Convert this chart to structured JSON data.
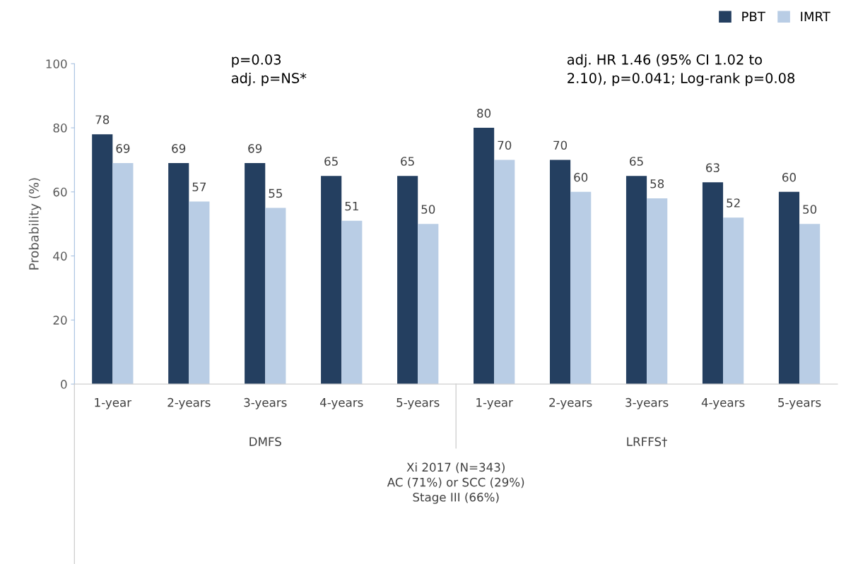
{
  "chart_data": {
    "type": "bar",
    "categories": [
      "1-year",
      "2-years",
      "3-years",
      "4-years",
      "5-years",
      "1-year",
      "2-years",
      "3-years",
      "4-years",
      "5-years"
    ],
    "series": [
      {
        "name": "PBT",
        "color": "#243f60",
        "values": [
          78,
          69,
          69,
          65,
          65,
          80,
          70,
          65,
          63,
          60
        ]
      },
      {
        "name": "IMRT",
        "color": "#b9cde5",
        "values": [
          69,
          57,
          55,
          51,
          50,
          70,
          60,
          58,
          52,
          50
        ]
      }
    ],
    "ylabel": "Probability (%)",
    "ylim": [
      0,
      100
    ],
    "yticks": [
      0,
      20,
      40,
      60,
      80,
      100
    ],
    "data_labels": true,
    "grid": false,
    "legend": "top right",
    "annotations": [
      "DMFS",
      "LRFFS†",
      "Xi 2017 (N=343)\nAC (71%) or SCC (29%)\nStage III (66%)",
      "p=0.03\nadj. p=NS*",
      "adj. HR 1.46 (95% CI 1.02 to\n2.10), p=0.041; Log-rank p=0.08"
    ]
  }
}
